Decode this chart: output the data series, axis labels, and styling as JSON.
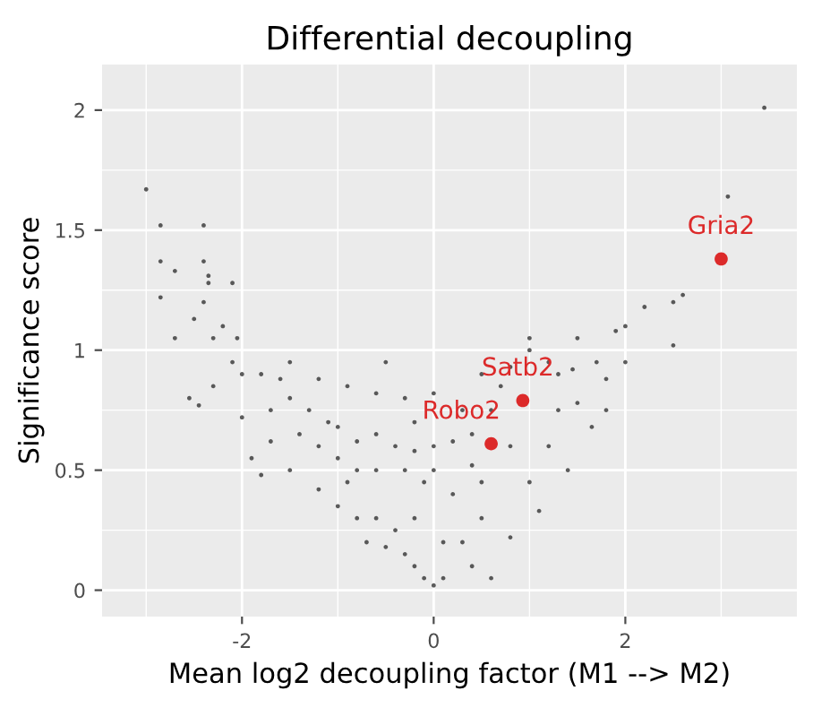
{
  "chart_data": {
    "type": "scatter",
    "title": "Differential decoupling",
    "xlabel": "Mean log2 decoupling factor (M1 --> M2)",
    "ylabel": "Significance score",
    "xlim": [
      -3.46,
      3.79
    ],
    "ylim": [
      -0.11,
      2.19
    ],
    "xticks": [
      -2,
      0,
      2
    ],
    "yticks": [
      0,
      0.5,
      1,
      1.5,
      2
    ],
    "grid": true,
    "marker": "circle",
    "series": [
      {
        "color": "#333333",
        "x": [
          -3.0,
          3.45,
          3.07,
          -2.85,
          -2.85,
          -2.7,
          -2.85,
          -2.7,
          -2.4,
          -2.4,
          -2.35,
          -2.35,
          -2.1,
          -2.4,
          -2.5,
          -2.2,
          -2.3,
          -2.05,
          -2.55,
          -2.45,
          -2.0,
          -2.1,
          -2.0,
          2.5,
          2.6,
          2.5,
          2.2,
          2.0,
          1.9,
          1.5,
          1.7,
          1.8,
          1.45,
          1.2,
          1.3,
          1.0,
          1.0,
          0.8,
          1.5,
          1.65,
          1.2,
          1.4,
          1.0,
          0.5,
          1.1,
          2.0,
          1.8,
          0.8,
          0.3,
          0.5,
          0.4,
          0.6,
          0.0,
          -0.1,
          0.1,
          -0.2,
          -0.3,
          -0.5,
          -0.7,
          -0.8,
          -1.0,
          -1.2,
          -0.9,
          -0.6,
          -0.4,
          -0.2,
          0.1,
          0.2,
          0.4,
          -0.1,
          -1.8,
          -1.6,
          -1.5,
          -1.3,
          -1.1,
          -1.0,
          -0.8,
          -0.6,
          -0.4,
          -0.2,
          0.0,
          0.2,
          0.4,
          -1.7,
          -1.4,
          -1.2,
          -1.0,
          -0.8,
          -0.6,
          -0.3,
          0.0,
          -1.5,
          -1.2,
          -0.9,
          -0.6,
          -0.3,
          0.0,
          -0.5,
          -1.9,
          -1.5,
          -1.7,
          -2.3,
          -1.8,
          -0.2,
          0.3,
          0.6,
          0.7,
          0.5,
          0.8,
          1.3
        ],
        "values": [
          1.67,
          2.01,
          1.64,
          1.52,
          1.37,
          1.33,
          1.22,
          1.05,
          1.52,
          1.37,
          1.31,
          1.28,
          1.28,
          1.2,
          1.13,
          1.1,
          1.05,
          1.05,
          0.8,
          0.77,
          0.72,
          0.95,
          0.9,
          1.02,
          1.23,
          1.2,
          1.18,
          1.1,
          1.08,
          1.05,
          0.95,
          0.88,
          0.92,
          0.95,
          0.9,
          1.0,
          1.05,
          0.93,
          0.78,
          0.68,
          0.6,
          0.5,
          0.45,
          0.45,
          0.33,
          0.95,
          0.75,
          0.22,
          0.2,
          0.3,
          0.1,
          0.05,
          0.02,
          0.05,
          0.05,
          0.1,
          0.15,
          0.18,
          0.2,
          0.3,
          0.35,
          0.42,
          0.45,
          0.3,
          0.25,
          0.3,
          0.2,
          0.4,
          0.52,
          0.45,
          0.9,
          0.88,
          0.8,
          0.75,
          0.7,
          0.68,
          0.62,
          0.65,
          0.6,
          0.58,
          0.6,
          0.62,
          0.65,
          0.75,
          0.65,
          0.6,
          0.55,
          0.5,
          0.5,
          0.5,
          0.5,
          0.95,
          0.88,
          0.85,
          0.82,
          0.8,
          0.82,
          0.95,
          0.55,
          0.5,
          0.62,
          0.85,
          0.48,
          0.7,
          0.75,
          0.75,
          0.85,
          0.9,
          0.6,
          0.75
        ]
      },
      {
        "color": "#dc2a2a",
        "x": [
          3.0,
          0.93,
          0.6
        ],
        "values": [
          1.38,
          0.79,
          0.61
        ]
      }
    ],
    "annotations": [
      {
        "text": "Gria2",
        "x": 3.0,
        "y": 1.38
      },
      {
        "text": "Satb2",
        "x": 0.93,
        "y": 0.79
      },
      {
        "text": "Robo2",
        "x": 0.6,
        "y": 0.61
      }
    ]
  }
}
